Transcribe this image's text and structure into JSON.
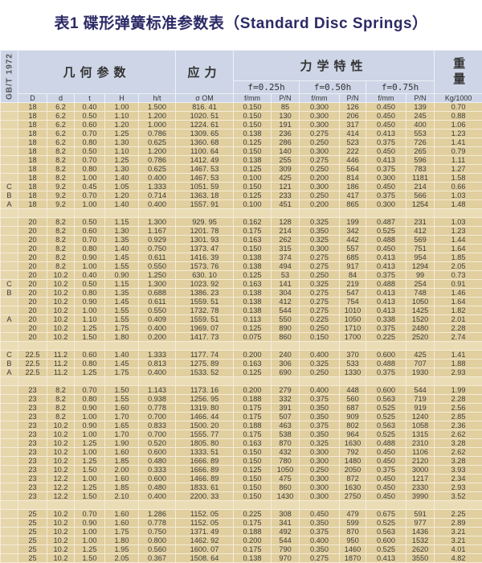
{
  "title": "表1 碟形弹簧标准参数表（Standard Disc Springs）",
  "colors": {
    "title": "#2c2a66",
    "header_bg": "#cdd5e6",
    "cell_bg": "#e1cf9f",
    "grid": "#f4ecd8"
  },
  "header": {
    "standard": "GB/T 1972",
    "geometry": "几何参数",
    "stress": "应力",
    "mechanics": "力学特性",
    "weight": "重量",
    "f1": "f=0.25h",
    "f2": "f=0.50h",
    "f3": "f=0.75h",
    "columns": [
      "D",
      "d",
      "t",
      "H",
      "h/t",
      "σ OM",
      "f/mm",
      "P/N",
      "f/mm",
      "P/N",
      "f/mm",
      "P/N",
      "Kg/1000"
    ]
  },
  "groups": [
    [
      [
        "",
        "18",
        "6.2",
        "0.40",
        "1.00",
        "1.500",
        "816. 41",
        "0.150",
        "85",
        "0.300",
        "126",
        "0.450",
        "139",
        "0.70"
      ],
      [
        "",
        "18",
        "6.2",
        "0.50",
        "1.10",
        "1.200",
        "1020. 51",
        "0.150",
        "130",
        "0.300",
        "206",
        "0.450",
        "245",
        "0.88"
      ],
      [
        "",
        "18",
        "6.2",
        "0.60",
        "1.20",
        "1.000",
        "1224. 61",
        "0.150",
        "191",
        "0.300",
        "317",
        "0.450",
        "400",
        "1.06"
      ],
      [
        "",
        "18",
        "6.2",
        "0.70",
        "1.25",
        "0.786",
        "1309. 65",
        "0.138",
        "236",
        "0.275",
        "414",
        "0.413",
        "553",
        "1.23"
      ],
      [
        "",
        "18",
        "6.2",
        "0.80",
        "1.30",
        "0.625",
        "1360. 68",
        "0.125",
        "286",
        "0.250",
        "523",
        "0.375",
        "726",
        "1.41"
      ],
      [
        "",
        "18",
        "8.2",
        "0.50",
        "1.10",
        "1.200",
        "1100. 64",
        "0.150",
        "140",
        "0.300",
        "222",
        "0.450",
        "265",
        "0.79"
      ],
      [
        "",
        "18",
        "8.2",
        "0.70",
        "1.25",
        "0.786",
        "1412. 49",
        "0.138",
        "255",
        "0.275",
        "446",
        "0.413",
        "596",
        "1.11"
      ],
      [
        "",
        "18",
        "8.2",
        "0.80",
        "1.30",
        "0.625",
        "1467. 53",
        "0.125",
        "309",
        "0.250",
        "564",
        "0.375",
        "783",
        "1.27"
      ],
      [
        "",
        "18",
        "8.2",
        "1.00",
        "1.40",
        "0.400",
        "1467. 53",
        "0.100",
        "425",
        "0.200",
        "814",
        "0.300",
        "1181",
        "1.58"
      ],
      [
        "C",
        "18",
        "9.2",
        "0.45",
        "1.05",
        "1.333",
        "1051. 59",
        "0.150",
        "121",
        "0.300",
        "186",
        "0.450",
        "214",
        "0.66"
      ],
      [
        "B",
        "18",
        "9.2",
        "0.70",
        "1.20",
        "0.714",
        "1363. 18",
        "0.125",
        "233",
        "0.250",
        "417",
        "0.375",
        "566",
        "1.03"
      ],
      [
        "A",
        "18",
        "9.2",
        "1.00",
        "1.40",
        "0.400",
        "1557. 91",
        "0.100",
        "451",
        "0.200",
        "865",
        "0.300",
        "1254",
        "1.48"
      ]
    ],
    [
      [
        "",
        "20",
        "8.2",
        "0.50",
        "1.15",
        "1.300",
        "929. 95",
        "0.162",
        "128",
        "0.325",
        "199",
        "0.487",
        "231",
        "1.03"
      ],
      [
        "",
        "20",
        "8.2",
        "0.60",
        "1.30",
        "1.167",
        "1201. 78",
        "0.175",
        "214",
        "0.350",
        "342",
        "0.525",
        "412",
        "1.23"
      ],
      [
        "",
        "20",
        "8.2",
        "0.70",
        "1.35",
        "0.929",
        "1301. 93",
        "0.163",
        "262",
        "0.325",
        "442",
        "0.488",
        "569",
        "1.44"
      ],
      [
        "",
        "20",
        "8.2",
        "0.80",
        "1.40",
        "0.750",
        "1373. 47",
        "0.150",
        "315",
        "0.300",
        "557",
        "0.450",
        "751",
        "1.64"
      ],
      [
        "",
        "20",
        "8.2",
        "0.90",
        "1.45",
        "0.611",
        "1416. 39",
        "0.138",
        "374",
        "0.275",
        "685",
        "0.413",
        "954",
        "1.85"
      ],
      [
        "",
        "20",
        "8.2",
        "1.00",
        "1.55",
        "0.550",
        "1573. 76",
        "0.138",
        "494",
        "0.275",
        "917",
        "0.413",
        "1294",
        "2.05"
      ],
      [
        "",
        "20",
        "10.2",
        "0.40",
        "0.90",
        "1.250",
        "630. 10",
        "0.125",
        "53",
        "0.250",
        "84",
        "0.375",
        "99",
        "0.73"
      ],
      [
        "C",
        "20",
        "10.2",
        "0.50",
        "1.15",
        "1.300",
        "1023. 92",
        "0.163",
        "141",
        "0.325",
        "219",
        "0.488",
        "254",
        "0.91"
      ],
      [
        "B",
        "20",
        "10.2",
        "0.80",
        "1.35",
        "0.688",
        "1386. 23",
        "0.138",
        "304",
        "0.275",
        "547",
        "0.413",
        "748",
        "1.46"
      ],
      [
        "",
        "20",
        "10.2",
        "0.90",
        "1.45",
        "0.611",
        "1559. 51",
        "0.138",
        "412",
        "0.275",
        "754",
        "0.413",
        "1050",
        "1.64"
      ],
      [
        "",
        "20",
        "10.2",
        "1.00",
        "1.55",
        "0.550",
        "1732. 78",
        "0.138",
        "544",
        "0.275",
        "1010",
        "0.413",
        "1425",
        "1.82"
      ],
      [
        "A",
        "20",
        "10.2",
        "1.10",
        "1.55",
        "0.409",
        "1559. 51",
        "0.113",
        "550",
        "0.225",
        "1050",
        "0.338",
        "1520",
        "2.01"
      ],
      [
        "",
        "20",
        "10.2",
        "1.25",
        "1.75",
        "0.400",
        "1969. 07",
        "0.125",
        "890",
        "0.250",
        "1710",
        "0.375",
        "2480",
        "2.28"
      ],
      [
        "",
        "20",
        "10.2",
        "1.50",
        "1.80",
        "0.200",
        "1417. 73",
        "0.075",
        "860",
        "0.150",
        "1700",
        "0.225",
        "2520",
        "2.74"
      ]
    ],
    [
      [
        "C",
        "22.5",
        "11.2",
        "0.60",
        "1.40",
        "1.333",
        "1177. 74",
        "0.200",
        "240",
        "0.400",
        "370",
        "0.600",
        "425",
        "1.41"
      ],
      [
        "B",
        "22.5",
        "11.2",
        "0.80",
        "1.45",
        "0.813",
        "1275. 89",
        "0.163",
        "306",
        "0.325",
        "533",
        "0.488",
        "707",
        "1.88"
      ],
      [
        "A",
        "22.5",
        "11.2",
        "1.25",
        "1.75",
        "0.400",
        "1533. 52",
        "0.125",
        "690",
        "0.250",
        "1330",
        "0.375",
        "1930",
        "2.93"
      ]
    ],
    [
      [
        "",
        "23",
        "8.2",
        "0.70",
        "1.50",
        "1.143",
        "1173. 16",
        "0.200",
        "279",
        "0.400",
        "448",
        "0.600",
        "544",
        "1.99"
      ],
      [
        "",
        "23",
        "8.2",
        "0.80",
        "1.55",
        "0.938",
        "1256. 95",
        "0.188",
        "332",
        "0.375",
        "560",
        "0.563",
        "719",
        "2.28"
      ],
      [
        "",
        "23",
        "8.2",
        "0.90",
        "1.60",
        "0.778",
        "1319. 80",
        "0.175",
        "391",
        "0.350",
        "687",
        "0.525",
        "919",
        "2.56"
      ],
      [
        "",
        "23",
        "8.2",
        "1.00",
        "1.70",
        "0.700",
        "1466. 44",
        "0.175",
        "507",
        "0.350",
        "909",
        "0.525",
        "1240",
        "2.85"
      ],
      [
        "",
        "23",
        "10.2",
        "0.90",
        "1.65",
        "0.833",
        "1500. 20",
        "0.188",
        "463",
        "0.375",
        "802",
        "0.563",
        "1058",
        "2.36"
      ],
      [
        "",
        "23",
        "10.2",
        "1.00",
        "1.70",
        "0.700",
        "1555. 77",
        "0.175",
        "538",
        "0.350",
        "964",
        "0.525",
        "1315",
        "2.62"
      ],
      [
        "",
        "23",
        "10.2",
        "1.25",
        "1.90",
        "0.520",
        "1805. 80",
        "0.163",
        "870",
        "0.325",
        "1630",
        "0.488",
        "2310",
        "3.28"
      ],
      [
        "",
        "23",
        "10.2",
        "1.00",
        "1.60",
        "0.600",
        "1333. 51",
        "0.150",
        "432",
        "0.300",
        "792",
        "0.450",
        "1106",
        "2.62"
      ],
      [
        "",
        "23",
        "10.2",
        "1.25",
        "1.85",
        "0.480",
        "1666. 89",
        "0.150",
        "780",
        "0.300",
        "1480",
        "0.450",
        "2120",
        "3.28"
      ],
      [
        "",
        "23",
        "10.2",
        "1.50",
        "2.00",
        "0.333",
        "1666. 89",
        "0.125",
        "1050",
        "0.250",
        "2050",
        "0.375",
        "3000",
        "3.93"
      ],
      [
        "",
        "23",
        "12.2",
        "1.00",
        "1.60",
        "0.600",
        "1466. 89",
        "0.150",
        "475",
        "0.300",
        "872",
        "0.450",
        "1217",
        "2.34"
      ],
      [
        "",
        "23",
        "12.2",
        "1.25",
        "1.85",
        "0.480",
        "1833. 61",
        "0.150",
        "860",
        "0.300",
        "1630",
        "0.450",
        "2330",
        "2.93"
      ],
      [
        "",
        "23",
        "12.2",
        "1.50",
        "2.10",
        "0.400",
        "2200. 33",
        "0.150",
        "1430",
        "0.300",
        "2750",
        "0.450",
        "3990",
        "3.52"
      ]
    ],
    [
      [
        "",
        "25",
        "10.2",
        "0.70",
        "1.60",
        "1.286",
        "1152. 05",
        "0.225",
        "308",
        "0.450",
        "479",
        "0.675",
        "591",
        "2.25"
      ],
      [
        "",
        "25",
        "10.2",
        "0.90",
        "1.60",
        "0.778",
        "1152. 05",
        "0.175",
        "341",
        "0.350",
        "599",
        "0.525",
        "977",
        "2.89"
      ],
      [
        "",
        "25",
        "10.2",
        "1.00",
        "1.75",
        "0.750",
        "1371. 49",
        "0.188",
        "492",
        "0.375",
        "870",
        "0.563",
        "1436",
        "3.21"
      ],
      [
        "",
        "25",
        "10.2",
        "1.00",
        "1.80",
        "0.800",
        "1462. 92",
        "0.200",
        "544",
        "0.400",
        "950",
        "0.600",
        "1532",
        "3.21"
      ],
      [
        "",
        "25",
        "10.2",
        "1.25",
        "1.95",
        "0.560",
        "1600. 07",
        "0.175",
        "790",
        "0.350",
        "1460",
        "0.525",
        "2620",
        "4.01"
      ],
      [
        "",
        "25",
        "10.2",
        "1.50",
        "2.05",
        "0.367",
        "1508. 64",
        "0.138",
        "970",
        "0.275",
        "1870",
        "0.413",
        "3550",
        "4.82"
      ]
    ]
  ]
}
